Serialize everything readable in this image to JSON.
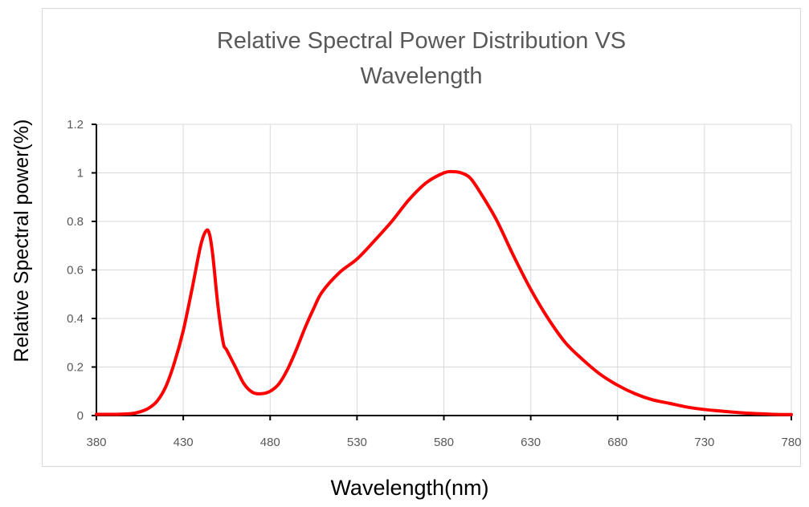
{
  "chart_data": {
    "type": "line",
    "title_lines": [
      "Relative Spectral Power Distribution VS",
      "Wavelength"
    ],
    "xlabel": "Wavelength(nm)",
    "ylabel": "Relative Spectral power(%)",
    "xlim": [
      380,
      780
    ],
    "ylim": [
      0,
      1.2
    ],
    "x_ticks": [
      380,
      430,
      480,
      530,
      580,
      630,
      680,
      730,
      780
    ],
    "y_ticks": [
      "0",
      "0.2",
      "0.4",
      "0.6",
      "0.8",
      "1",
      "1.2"
    ],
    "grid": true,
    "legend": "none",
    "colors": {
      "line": "#ff0000",
      "grid": "#d9d9d9",
      "axis": "#000000"
    },
    "series": [
      {
        "x": [
          380,
          390,
          400,
          405,
          410,
          415,
          420,
          425,
          430,
          435,
          440,
          443,
          445,
          447,
          450,
          453,
          455,
          460,
          465,
          470,
          475,
          480,
          485,
          490,
          495,
          500,
          505,
          510,
          520,
          530,
          540,
          550,
          560,
          570,
          580,
          585,
          590,
          595,
          600,
          610,
          620,
          630,
          640,
          650,
          660,
          670,
          680,
          690,
          700,
          710,
          720,
          730,
          740,
          750,
          760,
          770,
          780
        ],
        "y": [
          0.005,
          0.005,
          0.008,
          0.015,
          0.03,
          0.06,
          0.12,
          0.22,
          0.35,
          0.52,
          0.7,
          0.76,
          0.75,
          0.66,
          0.45,
          0.3,
          0.27,
          0.2,
          0.13,
          0.095,
          0.09,
          0.1,
          0.13,
          0.19,
          0.27,
          0.36,
          0.44,
          0.51,
          0.59,
          0.645,
          0.72,
          0.8,
          0.89,
          0.96,
          1.0,
          1.005,
          1.0,
          0.98,
          0.93,
          0.81,
          0.66,
          0.52,
          0.4,
          0.3,
          0.23,
          0.17,
          0.125,
          0.09,
          0.065,
          0.05,
          0.035,
          0.025,
          0.018,
          0.012,
          0.008,
          0.005,
          0.004
        ]
      }
    ]
  }
}
